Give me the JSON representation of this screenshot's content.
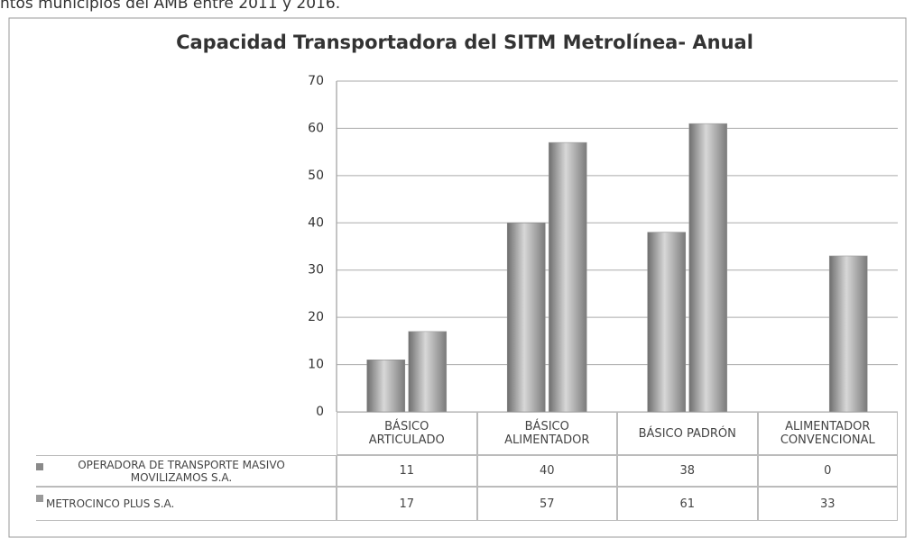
{
  "caption": "ntos municipios del AMB entre 2011 y 2016.",
  "chart_data": {
    "type": "bar",
    "title": "Capacidad Transportadora del SITM Metrolínea- Anual",
    "categories": [
      "BÁSICO ARTICULADO",
      "BÁSICO ALIMENTADOR",
      "BÁSICO PADRÓN",
      "ALIMENTADOR CONVENCIONAL"
    ],
    "series": [
      {
        "name": "OPERADORA DE TRANSPORTE MASIVO MOVILIZAMOS S.A.",
        "color": "#8a8a8a",
        "values": [
          11,
          40,
          38,
          0
        ]
      },
      {
        "name": "METROCINCO PLUS S.A.",
        "color": "#9a9a9a",
        "values": [
          17,
          57,
          61,
          33
        ]
      }
    ],
    "ylim": [
      0,
      70
    ],
    "yticks": [
      0,
      10,
      20,
      30,
      40,
      50,
      60,
      70
    ],
    "grid": true,
    "data_table": true
  }
}
